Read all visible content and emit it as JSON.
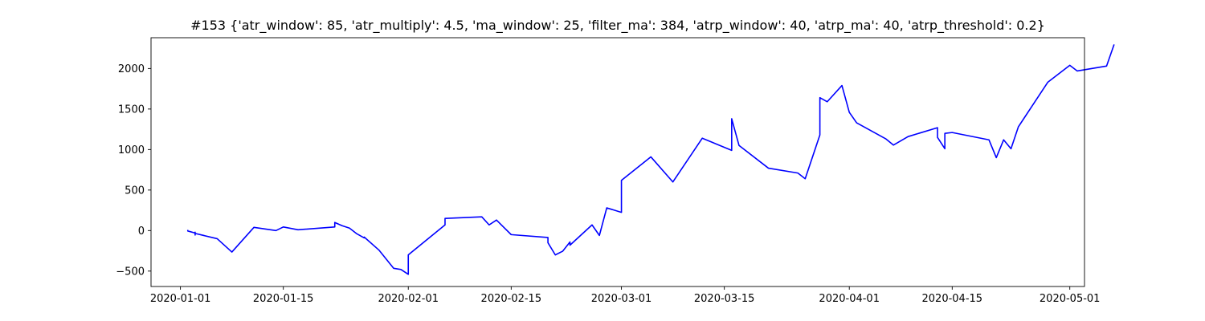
{
  "chart_data": {
    "type": "line",
    "title": "#153 {'atr_window': 85, 'atr_multiply': 4.5, 'ma_window': 25, 'filter_ma': 384, 'atrp_window': 40, 'atrp_ma': 40, 'atrp_threshold': 0.2}",
    "xlabel": "",
    "ylabel": "",
    "grid": false,
    "legend": "none",
    "x_axis": {
      "scale": "date",
      "range": [
        "2019-12-28",
        "2020-05-03"
      ],
      "ticks": [
        "2020-01-01",
        "2020-01-15",
        "2020-02-01",
        "2020-02-15",
        "2020-03-01",
        "2020-03-15",
        "2020-04-01",
        "2020-04-15",
        "2020-05-01"
      ]
    },
    "y_axis": {
      "range": [
        -690,
        2380
      ],
      "ticks": [
        -500,
        0,
        500,
        1000,
        1500,
        2000
      ]
    },
    "series": [
      {
        "color": "#0000ff",
        "points": [
          [
            "2020-01-02",
            0
          ],
          [
            "2020-01-02",
            -5
          ],
          [
            "2020-01-03",
            -30
          ],
          [
            "2020-01-03",
            -50
          ],
          [
            "2020-01-03",
            -20
          ],
          [
            "2020-01-03",
            -55
          ],
          [
            "2020-01-03",
            -35
          ],
          [
            "2020-01-06",
            -100
          ],
          [
            "2020-01-08",
            -265
          ],
          [
            "2020-01-11",
            40
          ],
          [
            "2020-01-14",
            0
          ],
          [
            "2020-01-15",
            45
          ],
          [
            "2020-01-17",
            10
          ],
          [
            "2020-01-22",
            45
          ],
          [
            "2020-01-22",
            100
          ],
          [
            "2020-01-23",
            60
          ],
          [
            "2020-01-24",
            30
          ],
          [
            "2020-01-25",
            -40
          ],
          [
            "2020-01-26",
            -90
          ],
          [
            "2020-01-26",
            -80
          ],
          [
            "2020-01-28",
            -240
          ],
          [
            "2020-01-30",
            -465
          ],
          [
            "2020-01-31",
            -480
          ],
          [
            "2020-02-01",
            -540
          ],
          [
            "2020-02-01",
            -450
          ],
          [
            "2020-02-01",
            -300
          ],
          [
            "2020-02-06",
            70
          ],
          [
            "2020-02-06",
            150
          ],
          [
            "2020-02-11",
            170
          ],
          [
            "2020-02-12",
            70
          ],
          [
            "2020-02-13",
            130
          ],
          [
            "2020-02-14",
            40
          ],
          [
            "2020-02-15",
            -50
          ],
          [
            "2020-02-20",
            -85
          ],
          [
            "2020-02-20",
            -150
          ],
          [
            "2020-02-21",
            -300
          ],
          [
            "2020-02-22",
            -255
          ],
          [
            "2020-02-23",
            -140
          ],
          [
            "2020-02-23",
            -180
          ],
          [
            "2020-02-26",
            70
          ],
          [
            "2020-02-27",
            -60
          ],
          [
            "2020-02-28",
            280
          ],
          [
            "2020-03-01",
            225
          ],
          [
            "2020-03-01",
            620
          ],
          [
            "2020-03-05",
            910
          ],
          [
            "2020-03-08",
            600
          ],
          [
            "2020-03-12",
            1140
          ],
          [
            "2020-03-16",
            990
          ],
          [
            "2020-03-16",
            1380
          ],
          [
            "2020-03-17",
            1050
          ],
          [
            "2020-03-21",
            770
          ],
          [
            "2020-03-25",
            710
          ],
          [
            "2020-03-26",
            640
          ],
          [
            "2020-03-28",
            1180
          ],
          [
            "2020-03-28",
            1640
          ],
          [
            "2020-03-29",
            1590
          ],
          [
            "2020-03-31",
            1790
          ],
          [
            "2020-04-01",
            1460
          ],
          [
            "2020-04-02",
            1330
          ],
          [
            "2020-04-06",
            1130
          ],
          [
            "2020-04-07",
            1055
          ],
          [
            "2020-04-09",
            1160
          ],
          [
            "2020-04-13",
            1270
          ],
          [
            "2020-04-13",
            1150
          ],
          [
            "2020-04-14",
            1010
          ],
          [
            "2020-04-14",
            1200
          ],
          [
            "2020-04-15",
            1210
          ],
          [
            "2020-04-20",
            1120
          ],
          [
            "2020-04-21",
            900
          ],
          [
            "2020-04-22",
            1120
          ],
          [
            "2020-04-23",
            1010
          ],
          [
            "2020-04-24",
            1280
          ],
          [
            "2020-04-28",
            1830
          ],
          [
            "2020-05-01",
            2040
          ],
          [
            "2020-05-02",
            1970
          ],
          [
            "2020-05-06",
            2030
          ],
          [
            "2020-05-07",
            2290
          ]
        ]
      }
    ]
  }
}
